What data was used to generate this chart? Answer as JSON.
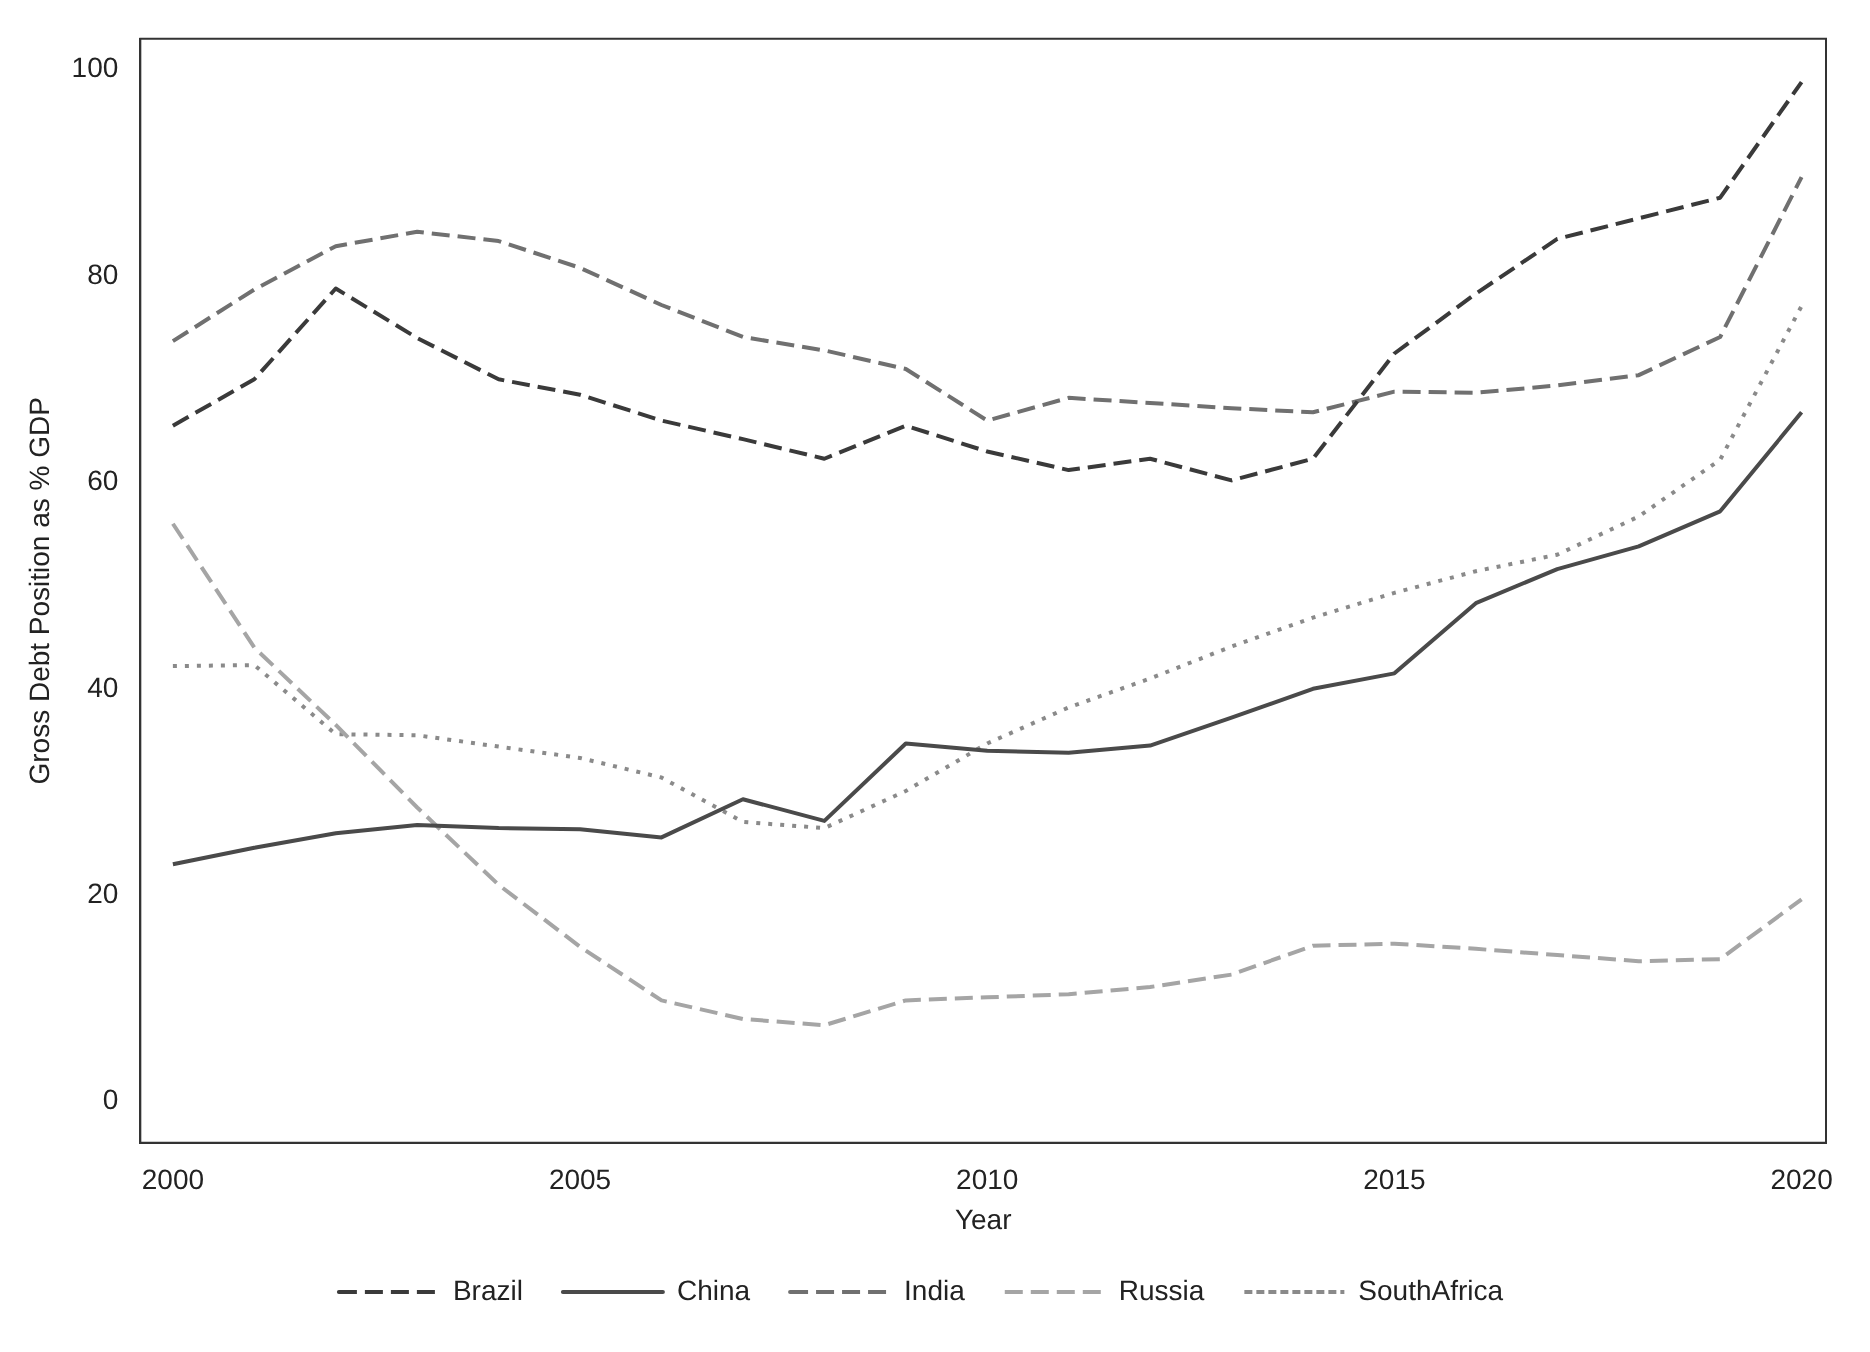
{
  "chart_data": {
    "type": "line",
    "xlabel": "Year",
    "ylabel": "Gross Debt Position as % GDP",
    "x": [
      2000,
      2001,
      2002,
      2003,
      2004,
      2005,
      2006,
      2007,
      2008,
      2009,
      2010,
      2011,
      2012,
      2013,
      2014,
      2015,
      2016,
      2017,
      2018,
      2019,
      2020
    ],
    "series": [
      {
        "name": "Brazil",
        "color": "#3a3a3a",
        "line_style": "dashed",
        "values": [
          65.5,
          70,
          78.8,
          74,
          70,
          68.5,
          66,
          64.2,
          62.3,
          65.5,
          63,
          61.2,
          62.3,
          60.2,
          62.3,
          72.5,
          78.3,
          83.6,
          85.6,
          87.6,
          98.8
        ]
      },
      {
        "name": "China",
        "color": "#4a4a4a",
        "line_style": "solid",
        "values": [
          23,
          24.6,
          26,
          26.8,
          26.5,
          26.4,
          25.6,
          29.3,
          27.2,
          34.7,
          34,
          33.8,
          34.5,
          37.2,
          40,
          41.5,
          48.3,
          51.6,
          53.8,
          57.2,
          66.8
        ]
      },
      {
        "name": "India",
        "color": "#707070",
        "line_style": "dashed",
        "values": [
          73.7,
          78.7,
          82.9,
          84.3,
          83.4,
          80.8,
          77.2,
          74.1,
          72.8,
          71,
          66,
          68.2,
          67.7,
          67.2,
          66.8,
          68.8,
          68.7,
          69.4,
          70.4,
          74.1,
          89.6
        ]
      },
      {
        "name": "Russia",
        "color": "#a5a5a5",
        "line_style": "dashed",
        "values": [
          56,
          44,
          36.5,
          28.5,
          21,
          15,
          9.8,
          8,
          7.4,
          9.8,
          10.1,
          10.4,
          11.1,
          12.3,
          15.1,
          15.3,
          14.8,
          14.2,
          13.6,
          13.8,
          19.6
        ]
      },
      {
        "name": "SouthAfrica",
        "color": "#8a8a8a",
        "line_style": "dotted",
        "values": [
          42.2,
          42.3,
          35.6,
          35.5,
          34.4,
          33.3,
          31.4,
          27.1,
          26.5,
          30.1,
          34.7,
          38.2,
          41,
          44.1,
          46.9,
          49.3,
          51.4,
          53,
          56.7,
          62.2,
          77.1
        ]
      }
    ],
    "xlim": [
      1999.6,
      2020.3
    ],
    "xticks": [
      2000,
      2005,
      2010,
      2015,
      2020
    ],
    "ylim": [
      -4,
      103
    ],
    "yticks": [
      0,
      20,
      40,
      60,
      80,
      100
    ],
    "grid": false,
    "legend": "bottom"
  }
}
